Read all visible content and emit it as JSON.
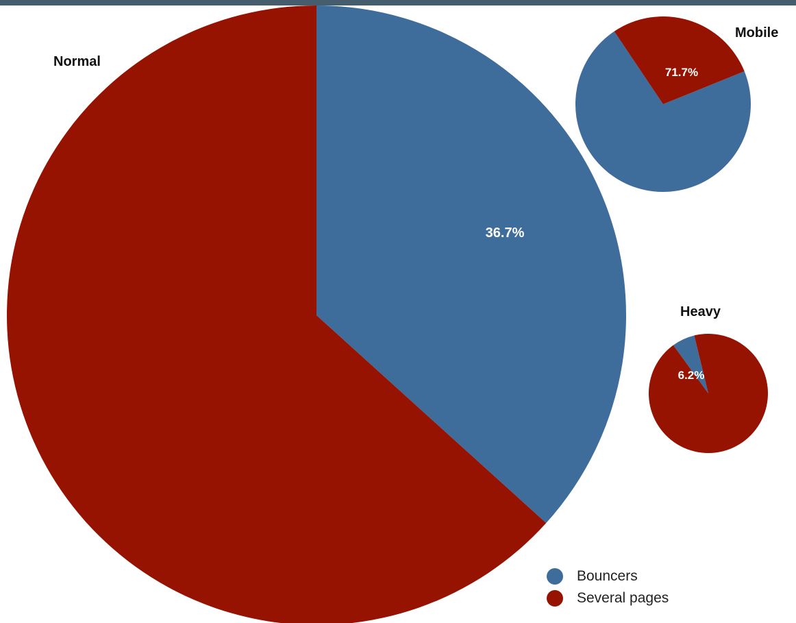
{
  "colors": {
    "bouncers": "#3e6d9c",
    "several_pages": "#961201",
    "topbar": "#455d6c"
  },
  "chart_data": {
    "type": "pie",
    "legend": {
      "placement": "bottom-right",
      "entries": [
        {
          "name": "Bouncers",
          "color": "#3e6d9c"
        },
        {
          "name": "Several pages",
          "color": "#961201"
        }
      ]
    },
    "series": [
      "Bouncers",
      "Several pages"
    ],
    "pies": [
      {
        "title": "Normal",
        "values": [
          36.7,
          63.3
        ],
        "label": "36.7%"
      },
      {
        "title": "Mobile",
        "values": [
          71.7,
          28.3
        ],
        "label": "71.7%"
      },
      {
        "title": "Heavy",
        "values": [
          6.2,
          93.8
        ],
        "label": "6.2%"
      }
    ]
  }
}
